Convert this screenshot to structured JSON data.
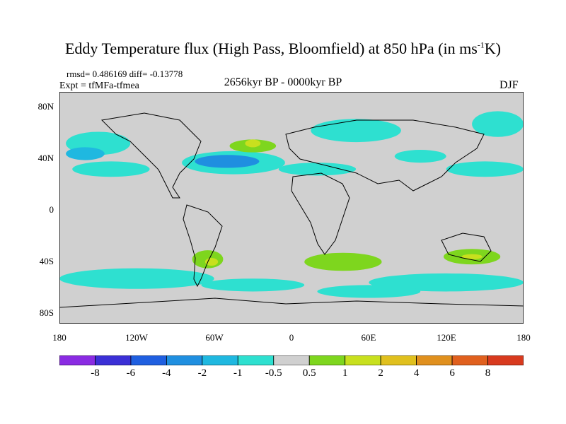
{
  "title_main": "Eddy Temperature flux (High Pass, Bloomfield) at 850 hPa (in ms",
  "title_sup": "-1",
  "title_end": "K)",
  "stats": "rmsd= 0.486169 diff= -0.13778",
  "expt": "Expt = tfMFa-tfmea",
  "period": "2656kyr BP - 0000kyr BP",
  "season": "DJF",
  "y_ticks": [
    "80N",
    "40N",
    "0",
    "40S",
    "80S"
  ],
  "x_ticks": [
    "180",
    "120W",
    "60W",
    "0",
    "60E",
    "120E",
    "180"
  ],
  "colorbar": {
    "labels": [
      "-8",
      "-6",
      "-4",
      "-2",
      "-1",
      "-0.5",
      "0.5",
      "1",
      "2",
      "4",
      "6",
      "8"
    ],
    "colors": [
      "#8a2be2",
      "#3b2fd6",
      "#1f5fe0",
      "#1f8fe0",
      "#1fb8e0",
      "#2ee0d0",
      "#d0d0d0",
      "#7ed61e",
      "#c8e01e",
      "#e0c01e",
      "#e0901e",
      "#e0601e",
      "#d83a1e"
    ]
  },
  "map": {
    "background": "#d0d0d0",
    "lat_range": [
      -90,
      90
    ],
    "lon_range": [
      -180,
      180
    ],
    "anomalies": [
      {
        "lon": -150,
        "lat": 50,
        "rx": 25,
        "ry": 9,
        "level": 5
      },
      {
        "lon": -140,
        "lat": 30,
        "rx": 30,
        "ry": 6,
        "level": 5
      },
      {
        "lon": -160,
        "lat": 42,
        "rx": 15,
        "ry": 5,
        "level": 4
      },
      {
        "lon": -45,
        "lat": 35,
        "rx": 40,
        "ry": 9,
        "level": 5
      },
      {
        "lon": -50,
        "lat": 36,
        "rx": 25,
        "ry": 5,
        "level": 3
      },
      {
        "lon": -30,
        "lat": 48,
        "rx": 18,
        "ry": 5,
        "level": 7
      },
      {
        "lon": -30,
        "lat": 50,
        "rx": 6,
        "ry": 3,
        "level": 8
      },
      {
        "lon": 20,
        "lat": 30,
        "rx": 30,
        "ry": 5,
        "level": 5
      },
      {
        "lon": 50,
        "lat": 60,
        "rx": 35,
        "ry": 9,
        "level": 5
      },
      {
        "lon": 160,
        "lat": 65,
        "rx": 20,
        "ry": 10,
        "level": 5
      },
      {
        "lon": 150,
        "lat": 30,
        "rx": 30,
        "ry": 6,
        "level": 5
      },
      {
        "lon": 100,
        "lat": 40,
        "rx": 20,
        "ry": 5,
        "level": 5
      },
      {
        "lon": -65,
        "lat": -40,
        "rx": 12,
        "ry": 7,
        "level": 7
      },
      {
        "lon": -62,
        "lat": -42,
        "rx": 5,
        "ry": 3,
        "level": 8
      },
      {
        "lon": 40,
        "lat": -42,
        "rx": 30,
        "ry": 7,
        "level": 7
      },
      {
        "lon": 140,
        "lat": -38,
        "rx": 22,
        "ry": 6,
        "level": 7
      },
      {
        "lon": 140,
        "lat": -38,
        "rx": 8,
        "ry": 2,
        "level": 8
      },
      {
        "lon": -120,
        "lat": -55,
        "rx": 60,
        "ry": 8,
        "level": 5
      },
      {
        "lon": -30,
        "lat": -60,
        "rx": 40,
        "ry": 5,
        "level": 5
      },
      {
        "lon": 120,
        "lat": -58,
        "rx": 60,
        "ry": 7,
        "level": 5
      },
      {
        "lon": 60,
        "lat": -65,
        "rx": 40,
        "ry": 5,
        "level": 5
      }
    ]
  }
}
